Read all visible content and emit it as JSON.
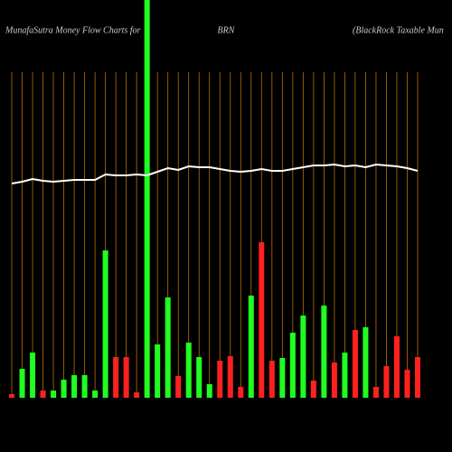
{
  "chart_data": {
    "type": "bar",
    "title": "MunafaSutra  Money Flow  Charts for",
    "ticker": "BRN",
    "subtitle": "(BlackRock Taxable  Mun",
    "values": [
      4,
      32,
      50,
      8,
      8,
      20,
      25,
      25,
      8,
      163,
      45,
      45,
      6,
      440,
      59,
      111,
      24,
      61,
      45,
      15,
      41,
      46,
      12,
      113,
      172,
      41,
      44,
      72,
      91,
      19,
      102,
      39,
      50,
      75,
      78,
      12,
      35,
      68,
      31,
      45
    ],
    "colors": [
      "#ff2020",
      "#20ff20",
      "#20ff20",
      "#ff2020",
      "#20ff20",
      "#20ff20",
      "#20ff20",
      "#20ff20",
      "#20ff20",
      "#20ff20",
      "#ff2020",
      "#ff2020",
      "#ff2020",
      "#20ff20",
      "#20ff20",
      "#20ff20",
      "#ff2020",
      "#20ff20",
      "#20ff20",
      "#20ff20",
      "#ff2020",
      "#ff2020",
      "#ff2020",
      "#20ff20",
      "#ff2020",
      "#ff2020",
      "#20ff20",
      "#20ff20",
      "#20ff20",
      "#ff2020",
      "#20ff20",
      "#ff2020",
      "#20ff20",
      "#ff2020",
      "#20ff20",
      "#ff2020",
      "#ff2020",
      "#ff2020",
      "#ff2020",
      "#ff2020"
    ],
    "line_values": [
      237,
      239,
      242,
      240,
      239,
      240,
      241,
      241,
      241,
      247,
      246,
      246,
      247,
      246,
      250,
      254,
      252,
      256,
      255,
      255,
      253,
      251,
      250,
      251,
      253,
      251,
      251,
      253,
      255,
      257,
      257,
      258,
      256,
      257,
      255,
      258,
      257,
      256,
      254,
      251
    ],
    "line_color": "#ffffff",
    "grid_color": "#b8700a",
    "ylim": [
      0,
      440
    ]
  }
}
